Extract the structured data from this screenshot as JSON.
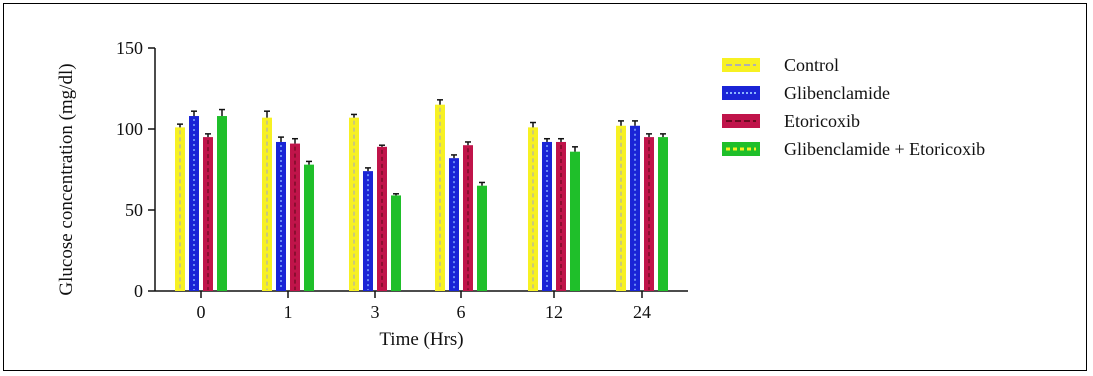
{
  "chart_data": {
    "type": "bar",
    "xlabel": "Time (Hrs)",
    "ylabel": "Glucose concentration (mg/dl)",
    "categories": [
      "0",
      "1",
      "3",
      "6",
      "12",
      "24"
    ],
    "ylim": [
      0,
      150
    ],
    "yticks": [
      "0",
      "50",
      "100",
      "150"
    ],
    "grid": false,
    "legend_position": "right",
    "error_bars": true,
    "series": [
      {
        "name": "Control",
        "color": "#f7f123",
        "pattern": "dashed-line",
        "pattern_color": "#b0b0b0",
        "values": [
          101,
          107,
          107,
          115,
          101,
          102
        ],
        "errors": [
          2,
          4,
          2,
          3,
          3,
          3
        ]
      },
      {
        "name": "Glibenclamide",
        "color": "#1a24d6",
        "pattern": "dotted-line",
        "pattern_color": "#8ab4ff",
        "values": [
          108,
          92,
          74,
          82,
          92,
          102
        ],
        "errors": [
          3,
          3,
          2,
          2,
          2,
          3
        ]
      },
      {
        "name": "Etoricoxib",
        "color": "#c0144a",
        "pattern": "dashed-line",
        "pattern_color": "#6a0a20",
        "values": [
          95,
          91,
          89,
          90,
          92,
          95
        ],
        "errors": [
          2,
          3,
          1,
          2,
          2,
          2
        ]
      },
      {
        "name": "Glibenclamide + Etoricoxib",
        "color": "#1fbf2a",
        "pattern": "none",
        "pattern_color": "#f7f123",
        "values": [
          108,
          78,
          59,
          65,
          86,
          95
        ],
        "errors": [
          4,
          2,
          1,
          2,
          3,
          2
        ]
      }
    ]
  }
}
